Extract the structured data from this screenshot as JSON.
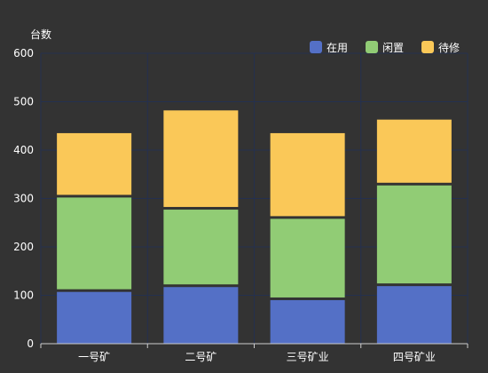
{
  "chart_data": {
    "type": "bar",
    "stacked": true,
    "ylabel": "台数",
    "ylim": [
      0,
      600
    ],
    "yticks": [
      0,
      100,
      200,
      300,
      400,
      500,
      600
    ],
    "grid": true,
    "legend_position": "top-right",
    "categories": [
      "一号矿",
      "二号矿",
      "三号矿业",
      "四号矿业"
    ],
    "series": [
      {
        "name": "在用",
        "color": "#5470c6",
        "values": [
          107,
          117,
          90,
          119
        ]
      },
      {
        "name": "闲置",
        "color": "#91cc75",
        "values": [
          195,
          160,
          168,
          208
        ]
      },
      {
        "name": "待修",
        "color": "#fac858",
        "values": [
          133,
          205,
          177,
          136
        ]
      }
    ]
  },
  "colors": {
    "background": "#333333",
    "grid": "#24304f",
    "axis": "#cccccc",
    "text": "#ffffff"
  }
}
